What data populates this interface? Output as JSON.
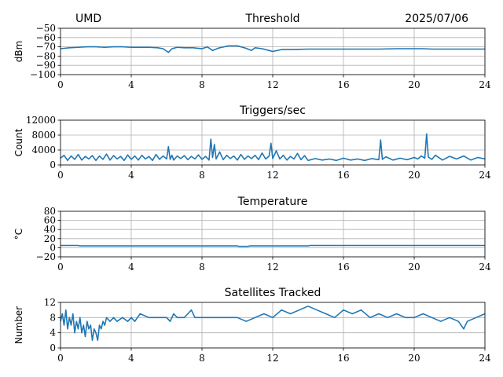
{
  "header": {
    "station": "UMD",
    "date": "2025/07/06"
  },
  "chart_data": [
    {
      "type": "line",
      "title": "Threshold",
      "xlabel": "",
      "ylabel": "dBm",
      "xlim": [
        0,
        24
      ],
      "ylim": [
        -100,
        -50
      ],
      "xticks": [
        "0",
        "4",
        "8",
        "12",
        "16",
        "20",
        "24"
      ],
      "yticks": [
        "−100",
        "−90",
        "−80",
        "−70",
        "−60",
        "−50"
      ],
      "grid": true,
      "series": [
        {
          "x": [
            0,
            0.5,
            1,
            1.5,
            2,
            2.5,
            3,
            3.5,
            4,
            4.5,
            5,
            5.5,
            5.8,
            6.1,
            6.3,
            6.6,
            7,
            7.5,
            8,
            8.3,
            8.6,
            9,
            9.5,
            10,
            10.4,
            10.8,
            11,
            11.4,
            11.8,
            12,
            12.5,
            13,
            14,
            15,
            16,
            17,
            18,
            19,
            20,
            20.5,
            21,
            21.5,
            22,
            23,
            24
          ],
          "y": [
            -72,
            -71,
            -70.5,
            -70,
            -70,
            -70.5,
            -70,
            -70,
            -70.5,
            -70.5,
            -70.5,
            -71,
            -72,
            -76,
            -72,
            -70.5,
            -71,
            -71,
            -72,
            -70,
            -74,
            -71,
            -69,
            -69,
            -71,
            -74,
            -71,
            -72,
            -74,
            -75,
            -73,
            -73,
            -72.5,
            -72.5,
            -72.5,
            -72.5,
            -72.5,
            -72,
            -72,
            -72,
            -72.5,
            -72.5,
            -72.5,
            -72.5,
            -72.5
          ]
        }
      ]
    },
    {
      "type": "line",
      "title": "Triggers/sec",
      "xlabel": "",
      "ylabel": "Count",
      "xlim": [
        0,
        24
      ],
      "ylim": [
        0,
        12000
      ],
      "xticks": [
        "0",
        "4",
        "8",
        "12",
        "16",
        "20",
        "24"
      ],
      "yticks": [
        "0",
        "4000",
        "8000",
        "12000"
      ],
      "grid": true,
      "series": [
        {
          "x": [
            0,
            0.2,
            0.4,
            0.6,
            0.8,
            1,
            1.2,
            1.4,
            1.6,
            1.8,
            2,
            2.2,
            2.4,
            2.6,
            2.8,
            3,
            3.2,
            3.4,
            3.6,
            3.8,
            4,
            4.2,
            4.4,
            4.6,
            4.8,
            5,
            5.2,
            5.4,
            5.6,
            5.8,
            6,
            6.1,
            6.2,
            6.3,
            6.4,
            6.6,
            6.8,
            7,
            7.2,
            7.4,
            7.6,
            7.8,
            8,
            8.2,
            8.4,
            8.5,
            8.6,
            8.7,
            8.8,
            9,
            9.2,
            9.4,
            9.6,
            9.8,
            10,
            10.2,
            10.4,
            10.6,
            10.8,
            11,
            11.2,
            11.4,
            11.6,
            11.8,
            11.9,
            12,
            12.2,
            12.4,
            12.6,
            12.8,
            13,
            13.2,
            13.4,
            13.6,
            13.8,
            14,
            14.4,
            14.8,
            15.2,
            15.6,
            16,
            16.4,
            16.8,
            17.2,
            17.6,
            18,
            18.1,
            18.2,
            18.4,
            18.8,
            19.2,
            19.6,
            20,
            20.2,
            20.4,
            20.6,
            20.7,
            20.8,
            21,
            21.2,
            21.6,
            22,
            22.4,
            22.8,
            23.2,
            23.6,
            24
          ],
          "y": [
            1800,
            2600,
            1200,
            2400,
            1500,
            2800,
            1300,
            2300,
            1600,
            2500,
            1200,
            2400,
            1500,
            2900,
            1300,
            2500,
            1600,
            2300,
            1200,
            2700,
            1500,
            2400,
            1300,
            2600,
            1600,
            2300,
            1200,
            2800,
            1500,
            2400,
            1600,
            4900,
            1500,
            2600,
            1300,
            2400,
            1700,
            2500,
            1400,
            2300,
            1600,
            2700,
            1500,
            2300,
            1300,
            6900,
            2000,
            5500,
            1600,
            3500,
            1400,
            2600,
            1700,
            2400,
            1300,
            2800,
            1500,
            2400,
            1700,
            2600,
            1400,
            3200,
            1600,
            2400,
            5800,
            1700,
            3800,
            1600,
            2600,
            1300,
            2300,
            1600,
            3100,
            1400,
            2500,
            1200,
            1700,
            1300,
            1600,
            1200,
            1800,
            1300,
            1600,
            1200,
            1700,
            1400,
            6700,
            1500,
            2200,
            1300,
            1800,
            1400,
            2000,
            1600,
            2400,
            1800,
            8300,
            2100,
            1500,
            2600,
            1300,
            2300,
            1600,
            2400,
            1300,
            2000,
            1600
          ]
        }
      ]
    },
    {
      "type": "line",
      "title": "Temperature",
      "xlabel": "",
      "ylabel": "°C",
      "xlim": [
        0,
        24
      ],
      "ylim": [
        -20,
        80
      ],
      "xticks": [
        "0",
        "4",
        "8",
        "12",
        "16",
        "20",
        "24"
      ],
      "yticks": [
        "−20",
        "0",
        "20",
        "40",
        "60",
        "80"
      ],
      "grid": true,
      "series": [
        {
          "x": [
            0,
            1,
            1.1,
            2,
            4,
            6,
            8,
            10,
            10.1,
            10.6,
            10.7,
            12,
            14,
            14.1,
            16,
            18,
            20,
            22,
            24
          ],
          "y": [
            5,
            5,
            4,
            4,
            4,
            4,
            4,
            4,
            3,
            3,
            4,
            4,
            4,
            5,
            5,
            5,
            5,
            5,
            5
          ]
        }
      ]
    },
    {
      "type": "line",
      "title": "Satellites Tracked",
      "xlabel": "",
      "ylabel": "Number",
      "xlim": [
        0,
        24
      ],
      "ylim": [
        0,
        12
      ],
      "xticks": [
        "0",
        "4",
        "8",
        "12",
        "16",
        "20",
        "24"
      ],
      "yticks": [
        "0",
        "4",
        "8",
        "12"
      ],
      "grid": true,
      "series": [
        {
          "x": [
            0,
            0.1,
            0.2,
            0.3,
            0.4,
            0.5,
            0.6,
            0.7,
            0.8,
            0.9,
            1,
            1.1,
            1.2,
            1.3,
            1.4,
            1.5,
            1.6,
            1.7,
            1.8,
            1.9,
            2,
            2.1,
            2.2,
            2.3,
            2.4,
            2.5,
            2.6,
            2.8,
            3,
            3.2,
            3.5,
            3.8,
            4,
            4.2,
            4.5,
            5,
            5.5,
            6,
            6.2,
            6.4,
            6.6,
            7,
            7.2,
            7.4,
            7.6,
            8,
            8.5,
            9,
            9.5,
            10,
            10.5,
            11,
            11.5,
            12,
            12.5,
            13,
            13.5,
            14,
            14.5,
            15,
            15.5,
            16,
            16.5,
            17,
            17.5,
            18,
            18.5,
            19,
            19.5,
            20,
            20.5,
            21,
            21.5,
            22,
            22.5,
            22.8,
            23,
            23.5,
            24
          ],
          "y": [
            7,
            9,
            6,
            10,
            5,
            8,
            6,
            9,
            4,
            7,
            5,
            8,
            4,
            6,
            3,
            7,
            5,
            6,
            2,
            5,
            4,
            2,
            6,
            5,
            7,
            6,
            8,
            7,
            8,
            7,
            8,
            7,
            8,
            7,
            9,
            8,
            8,
            8,
            7,
            9,
            8,
            8,
            9,
            10,
            8,
            8,
            8,
            8,
            8,
            8,
            7,
            8,
            9,
            8,
            10,
            9,
            10,
            11,
            10,
            9,
            8,
            10,
            9,
            10,
            8,
            9,
            8,
            9,
            8,
            8,
            9,
            8,
            7,
            8,
            7,
            5,
            7,
            8,
            9
          ]
        }
      ]
    }
  ]
}
